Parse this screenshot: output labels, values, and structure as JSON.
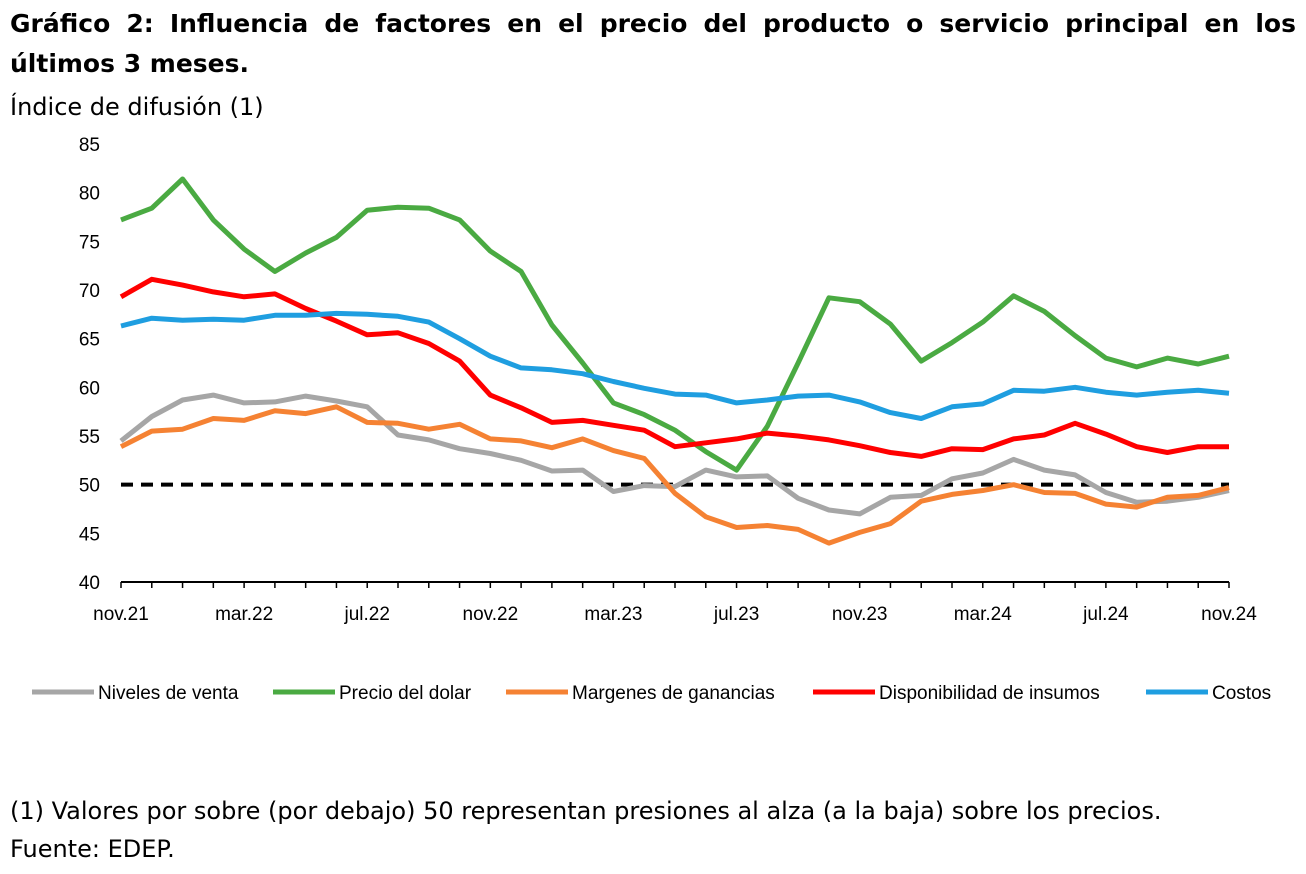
{
  "title": "Gráfico 2: Influencia de factores en el precio del producto o servicio principal en los últimos 3 meses.",
  "subtitle": "Índice de difusión (1)",
  "footnote": "(1) Valores por sobre (por debajo) 50 representan presiones al alza (a la baja) sobre los precios.",
  "source": "Fuente: EDEP.",
  "chart_data": {
    "type": "line",
    "ylim": [
      40,
      85
    ],
    "yticks": [
      40,
      45,
      50,
      55,
      60,
      65,
      70,
      75,
      80,
      85
    ],
    "xtick_labels": [
      "nov.21",
      "mar.22",
      "jul.22",
      "nov.22",
      "mar.23",
      "jul.23",
      "nov.23",
      "mar.24",
      "jul.24",
      "nov.24"
    ],
    "x": [
      "nov.21",
      "dic.21",
      "ene.22",
      "feb.22",
      "mar.22",
      "abr.22",
      "may.22",
      "jun.22",
      "jul.22",
      "ago.22",
      "sep.22",
      "oct.22",
      "nov.22",
      "dic.22",
      "ene.23",
      "feb.23",
      "mar.23",
      "abr.23",
      "may.23",
      "jun.23",
      "jul.23",
      "ago.23",
      "sep.23",
      "oct.23",
      "nov.23",
      "dic.23",
      "ene.24",
      "feb.24",
      "mar.24",
      "abr.24",
      "may.24",
      "jun.24",
      "jul.24",
      "ago.24",
      "sep.24",
      "oct.24",
      "nov.24"
    ],
    "reference_line": {
      "y": 50,
      "style": "dashed",
      "color": "#000000"
    },
    "grid": false,
    "legend_position": "bottom",
    "series": [
      {
        "name": "Niveles de venta",
        "color": "#a6a6a6",
        "values": [
          54.5,
          57.0,
          58.7,
          59.2,
          58.4,
          58.5,
          59.1,
          58.6,
          58.0,
          55.1,
          54.6,
          53.7,
          53.2,
          52.5,
          51.4,
          51.5,
          49.3,
          49.9,
          49.8,
          51.5,
          50.8,
          50.9,
          48.6,
          47.4,
          47.0,
          48.7,
          48.9,
          50.6,
          51.2,
          52.6,
          51.5,
          51.0,
          49.2,
          48.2,
          48.3,
          48.7,
          49.4
        ]
      },
      {
        "name": "Precio del dolar",
        "color": "#4aaa42",
        "values": [
          77.2,
          78.4,
          81.4,
          77.2,
          74.2,
          71.9,
          73.8,
          75.4,
          78.2,
          78.5,
          78.4,
          77.2,
          74.0,
          71.9,
          66.4,
          62.5,
          58.4,
          57.2,
          55.6,
          53.4,
          51.5,
          56.0,
          62.5,
          69.2,
          68.8,
          66.5,
          62.7,
          64.6,
          66.7,
          69.4,
          67.8,
          65.3,
          63.0,
          62.1,
          63.0,
          62.4,
          63.2
        ]
      },
      {
        "name": "Margenes de ganancias",
        "color": "#f58233",
        "values": [
          53.9,
          55.5,
          55.7,
          56.8,
          56.6,
          57.6,
          57.3,
          58.0,
          56.4,
          56.3,
          55.7,
          56.2,
          54.7,
          54.5,
          53.8,
          54.7,
          53.5,
          52.7,
          49.1,
          46.7,
          45.6,
          45.8,
          45.4,
          44.0,
          45.1,
          46.0,
          48.3,
          49.0,
          49.4,
          50.0,
          49.2,
          49.1,
          48.0,
          47.7,
          48.7,
          48.9,
          49.7
        ]
      },
      {
        "name": "Disponibilidad de insumos",
        "color": "#ff0000",
        "values": [
          69.3,
          71.1,
          70.5,
          69.8,
          69.3,
          69.6,
          68.1,
          66.8,
          65.4,
          65.6,
          64.5,
          62.7,
          59.2,
          57.9,
          56.4,
          56.6,
          56.1,
          55.6,
          53.9,
          54.3,
          54.7,
          55.3,
          55.0,
          54.6,
          54.0,
          53.3,
          52.9,
          53.7,
          53.6,
          54.7,
          55.1,
          56.3,
          55.2,
          53.9,
          53.3,
          53.9,
          53.9
        ]
      },
      {
        "name": "Costos",
        "color": "#1f9ee0",
        "values": [
          66.3,
          67.1,
          66.9,
          67.0,
          66.9,
          67.4,
          67.4,
          67.6,
          67.5,
          67.3,
          66.7,
          65.0,
          63.2,
          62.0,
          61.8,
          61.4,
          60.6,
          59.9,
          59.3,
          59.2,
          58.4,
          58.7,
          59.1,
          59.2,
          58.5,
          57.4,
          56.8,
          58.0,
          58.3,
          59.7,
          59.6,
          60.0,
          59.5,
          59.2,
          59.5,
          59.7,
          59.4
        ]
      }
    ]
  }
}
